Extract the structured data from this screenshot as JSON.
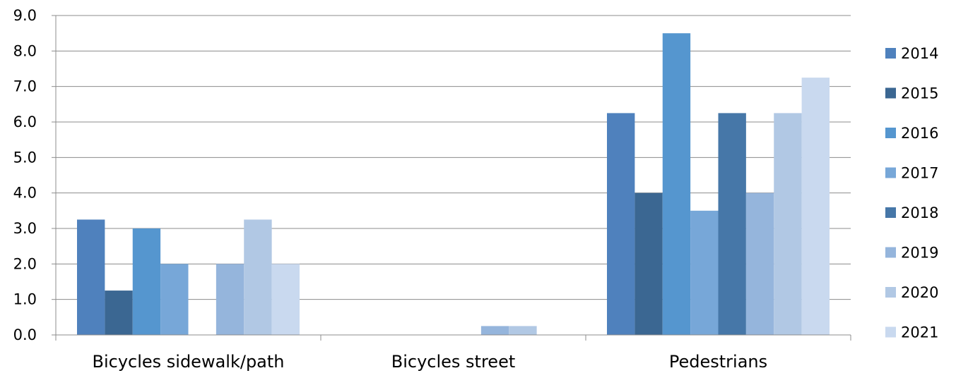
{
  "chart_data": {
    "type": "bar",
    "categories": [
      "Bicycles sidewalk/path",
      "Bicycles street",
      "Pedestrians"
    ],
    "series": [
      {
        "name": "2014",
        "color": "#4f81bd",
        "values": [
          3.25,
          0,
          6.25
        ]
      },
      {
        "name": "2015",
        "color": "#3b6792",
        "values": [
          1.25,
          0,
          4.0
        ]
      },
      {
        "name": "2016",
        "color": "#5596cf",
        "values": [
          3.0,
          0,
          8.5
        ]
      },
      {
        "name": "2017",
        "color": "#77a7d8",
        "values": [
          2.0,
          0,
          3.5
        ]
      },
      {
        "name": "2018",
        "color": "#4677a8",
        "values": [
          0,
          0,
          6.25
        ]
      },
      {
        "name": "2019",
        "color": "#95b5dc",
        "values": [
          2.0,
          0.25,
          4.0
        ]
      },
      {
        "name": "2020",
        "color": "#b1c8e4",
        "values": [
          3.25,
          0.25,
          6.25
        ]
      },
      {
        "name": "2021",
        "color": "#c9d9ef",
        "values": [
          2.0,
          0,
          7.25
        ]
      }
    ],
    "y_ticks": [
      "0.0",
      "1.0",
      "2.0",
      "3.0",
      "4.0",
      "5.0",
      "6.0",
      "7.0",
      "8.0",
      "9.0"
    ],
    "ylim": [
      0,
      9
    ],
    "grid": true,
    "legend_position": "right",
    "title": "",
    "xlabel": "",
    "ylabel": ""
  }
}
